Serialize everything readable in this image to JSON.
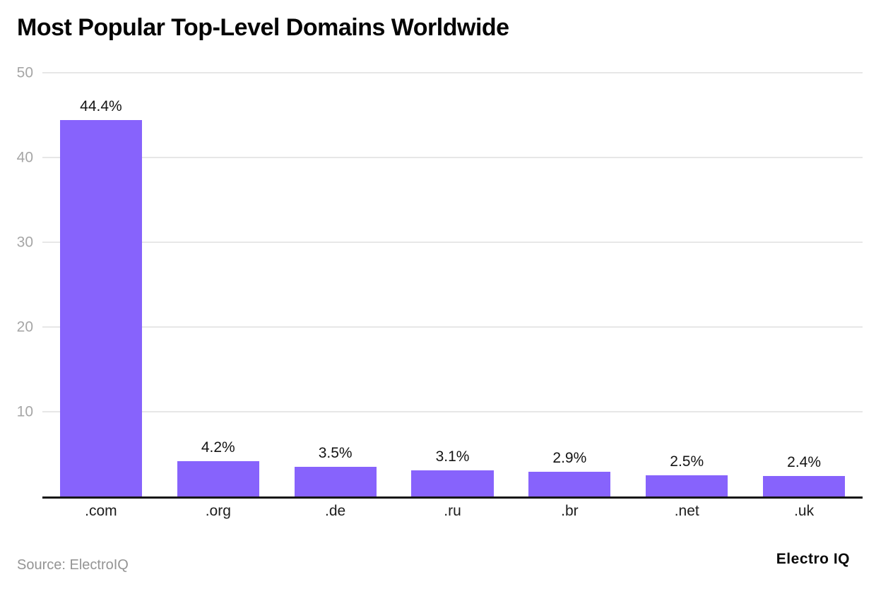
{
  "chart_data": {
    "type": "bar",
    "title": "Most Popular Top-Level Domains Worldwide",
    "categories": [
      ".com",
      ".org",
      ".de",
      ".ru",
      ".br",
      ".net",
      ".uk"
    ],
    "values": [
      44.4,
      4.2,
      3.5,
      3.1,
      2.9,
      2.5,
      2.4
    ],
    "value_labels": [
      "44.4%",
      "4.2%",
      "3.5%",
      "3.1%",
      "2.9%",
      "2.5%",
      "2.4%"
    ],
    "xlabel": "",
    "ylabel": "",
    "ylim": [
      0,
      50
    ],
    "y_ticks": [
      10,
      20,
      30,
      40,
      50
    ],
    "grid": true,
    "legend": false,
    "bar_color": "#8763FC",
    "gridline_color": "#e7e7e7",
    "axis_line_color": "#161616",
    "y_tick_color": "#a6a6a6",
    "x_tick_color": "#1d1d1d"
  },
  "footer": {
    "source": "Source: ElectroIQ",
    "brand": "Electro IQ"
  }
}
